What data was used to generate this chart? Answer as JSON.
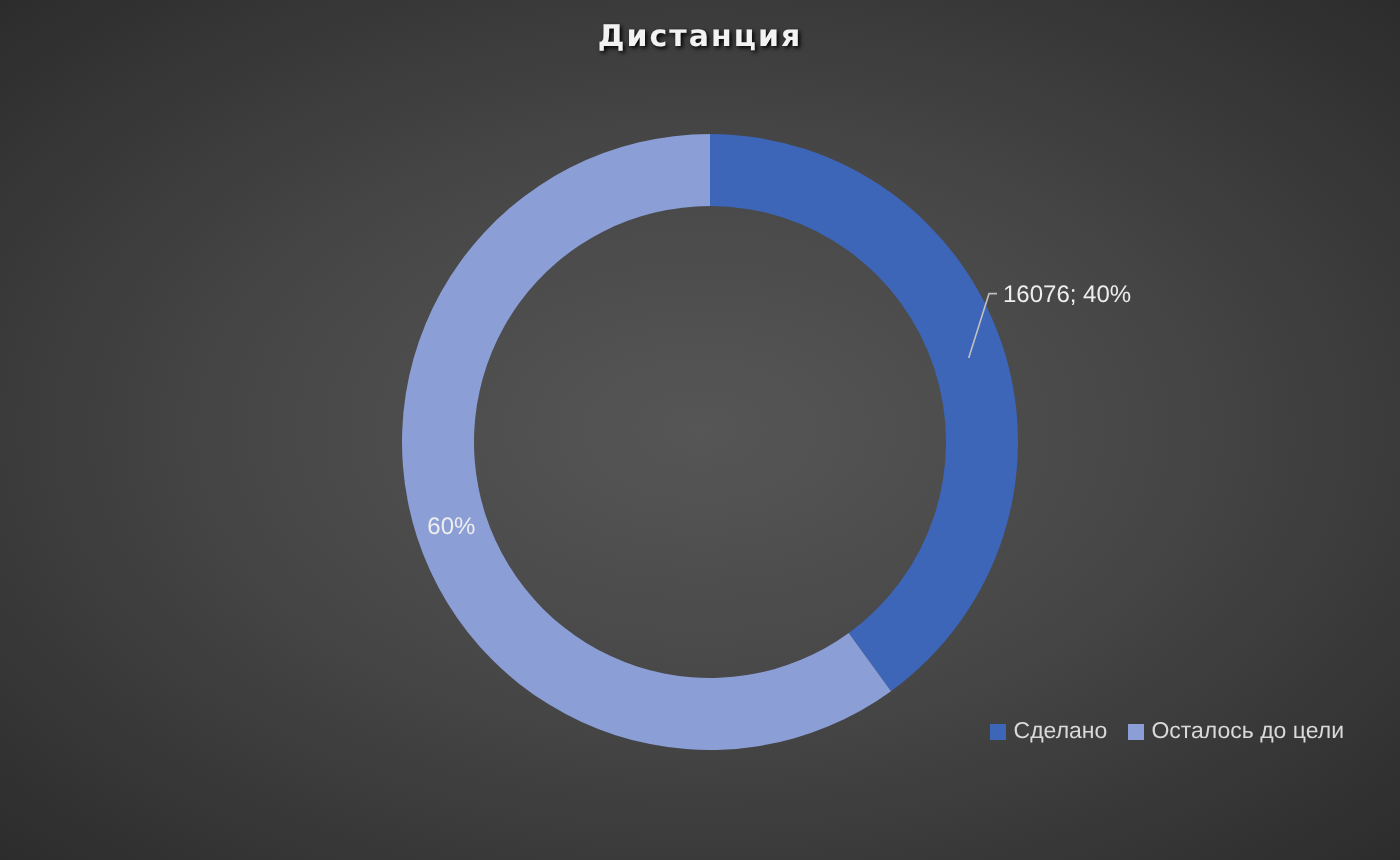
{
  "chart_data": {
    "type": "donut",
    "title": "Дистанция",
    "categories": [
      "Сделано",
      "Осталось до цели"
    ],
    "values": [
      40,
      60
    ],
    "colors": [
      "#3d65b8",
      "#8b9ed6"
    ],
    "value_labels": [
      "16076; 40%",
      "60%"
    ],
    "legend": "bottom right"
  }
}
